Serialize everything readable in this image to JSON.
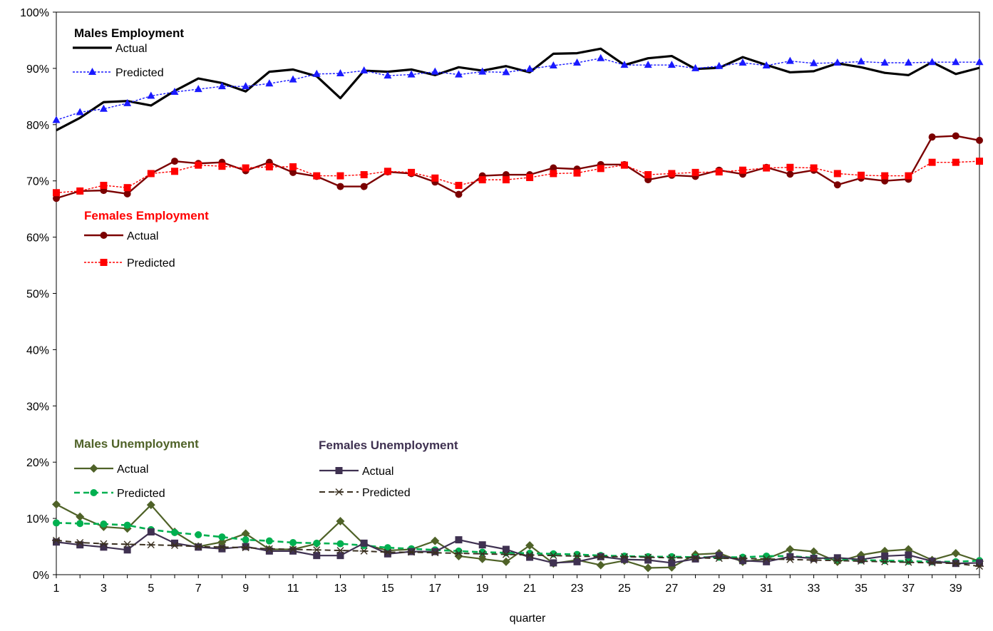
{
  "chart_data": {
    "type": "line",
    "xlabel": "quarter",
    "ylabel": "",
    "ylim": [
      0,
      100
    ],
    "y_tick_format": "percent",
    "yticks": [
      0,
      10,
      20,
      30,
      40,
      50,
      60,
      70,
      80,
      90,
      100
    ],
    "x": [
      1,
      2,
      3,
      4,
      5,
      6,
      7,
      8,
      9,
      10,
      11,
      12,
      13,
      14,
      15,
      16,
      17,
      18,
      19,
      20,
      21,
      22,
      23,
      24,
      25,
      26,
      27,
      28,
      29,
      30,
      31,
      32,
      33,
      34,
      35,
      36,
      37,
      38,
      39,
      40
    ],
    "xtick_labels": [
      1,
      3,
      5,
      7,
      9,
      11,
      13,
      15,
      17,
      19,
      21,
      23,
      25,
      27,
      29,
      31,
      33,
      35,
      37,
      39
    ],
    "grid": false,
    "groups": [
      {
        "title": "Males Employment",
        "title_color": "#000000",
        "series": [
          {
            "name": "Actual",
            "color": "#000000",
            "style": "solid",
            "width": 3.2,
            "marker": "none",
            "values": [
              79.0,
              81.2,
              84.0,
              84.2,
              83.4,
              86.0,
              88.2,
              87.4,
              85.9,
              89.4,
              89.8,
              88.6,
              84.7,
              89.6,
              89.4,
              89.8,
              88.8,
              90.2,
              89.6,
              90.4,
              89.3,
              92.6,
              92.7,
              93.5,
              90.6,
              91.8,
              92.2,
              89.9,
              90.1,
              92.0,
              90.6,
              89.3,
              89.5,
              90.9,
              90.2,
              89.2,
              88.8,
              91.1,
              89.0,
              90.1
            ]
          },
          {
            "name": "Predicted",
            "color": "#1a1aff",
            "style": "dotted",
            "width": 1.4,
            "marker": "triangle",
            "values": [
              80.8,
              82.2,
              82.8,
              83.8,
              85.1,
              85.8,
              86.3,
              86.8,
              86.8,
              87.3,
              88.0,
              89.0,
              89.1,
              89.6,
              88.7,
              88.9,
              89.4,
              88.9,
              89.4,
              89.3,
              89.9,
              90.5,
              91.0,
              91.8,
              90.6,
              90.6,
              90.6,
              90.0,
              90.4,
              91.0,
              90.5,
              91.3,
              90.9,
              91.0,
              91.2,
              91.0,
              91.0,
              91.1,
              91.1,
              91.1
            ]
          }
        ]
      },
      {
        "title": "Females Employment",
        "title_color": "#ff0000",
        "series": [
          {
            "name": "Actual",
            "color": "#7b0000",
            "style": "solid",
            "width": 2.4,
            "marker": "circle",
            "values": [
              66.9,
              68.2,
              68.3,
              67.7,
              71.3,
              73.5,
              73.1,
              73.3,
              71.8,
              73.3,
              71.5,
              70.8,
              69.0,
              69.0,
              71.6,
              71.3,
              69.8,
              67.6,
              70.9,
              71.1,
              71.1,
              72.3,
              72.1,
              72.9,
              72.9,
              70.2,
              71.0,
              70.8,
              71.9,
              71.2,
              72.4,
              71.2,
              71.9,
              69.3,
              70.5,
              70.0,
              70.3,
              77.8,
              78.0,
              77.2
            ]
          },
          {
            "name": "Predicted",
            "color": "#ff0000",
            "style": "dotted",
            "width": 1.4,
            "marker": "square",
            "values": [
              67.9,
              68.2,
              69.2,
              68.8,
              71.3,
              71.7,
              72.8,
              72.6,
              72.3,
              72.5,
              72.5,
              70.9,
              70.9,
              71.1,
              71.7,
              71.5,
              70.5,
              69.2,
              70.2,
              70.2,
              70.6,
              71.3,
              71.4,
              72.2,
              72.8,
              71.1,
              71.3,
              71.5,
              71.6,
              71.9,
              72.3,
              72.4,
              72.3,
              71.3,
              71.0,
              70.9,
              70.9,
              73.3,
              73.3,
              73.5
            ]
          }
        ]
      },
      {
        "title": "Males Unemployment",
        "title_color": "#4f6228",
        "series": [
          {
            "name": "Actual",
            "color": "#4f6228",
            "style": "solid",
            "width": 2.2,
            "marker": "diamond",
            "values": [
              12.5,
              10.3,
              8.5,
              8.2,
              12.4,
              7.6,
              5.0,
              5.8,
              7.3,
              4.5,
              4.5,
              5.5,
              9.5,
              5.4,
              4.3,
              4.5,
              6.0,
              3.3,
              2.8,
              2.3,
              5.2,
              2.0,
              2.6,
              1.7,
              2.5,
              1.2,
              1.3,
              3.6,
              3.8,
              2.3,
              2.8,
              4.5,
              4.1,
              2.3,
              3.5,
              4.2,
              4.5,
              2.6,
              3.8,
              2.4
            ]
          },
          {
            "name": "Predicted",
            "color": "#00b050",
            "style": "dashed",
            "width": 2.6,
            "marker": "circle",
            "values": [
              9.2,
              9.1,
              9.0,
              8.8,
              8.0,
              7.5,
              7.1,
              6.7,
              6.2,
              6.0,
              5.7,
              5.6,
              5.5,
              5.2,
              4.8,
              4.6,
              4.4,
              4.2,
              4.0,
              3.9,
              3.8,
              3.7,
              3.6,
              3.4,
              3.3,
              3.2,
              3.2,
              3.1,
              3.1,
              3.1,
              3.3,
              3.3,
              3.0,
              2.7,
              2.6,
              2.5,
              2.4,
              2.3,
              2.3,
              2.5
            ]
          }
        ]
      },
      {
        "title": "Females Unemployment",
        "title_color": "#3f3151",
        "series": [
          {
            "name": "Actual",
            "color": "#3f3151",
            "style": "solid",
            "width": 2.2,
            "marker": "square",
            "values": [
              5.8,
              5.3,
              4.9,
              4.4,
              7.6,
              5.6,
              4.9,
              4.6,
              5.0,
              4.2,
              4.2,
              3.4,
              3.4,
              5.6,
              3.7,
              4.1,
              4.1,
              6.2,
              5.3,
              4.5,
              3.1,
              2.1,
              2.3,
              3.2,
              2.7,
              2.6,
              2.1,
              2.8,
              3.4,
              2.5,
              2.3,
              3.2,
              2.9,
              3.0,
              2.7,
              3.3,
              3.5,
              2.4,
              2.0,
              2.1
            ]
          },
          {
            "name": "Predicted",
            "color": "#3a3020",
            "style": "dashed",
            "width": 2.0,
            "marker": "star",
            "values": [
              6.1,
              5.7,
              5.5,
              5.4,
              5.3,
              5.2,
              5.0,
              4.9,
              4.8,
              4.6,
              4.5,
              4.4,
              4.3,
              4.2,
              4.0,
              4.0,
              3.9,
              3.8,
              3.7,
              3.6,
              3.5,
              3.4,
              3.3,
              3.2,
              3.2,
              3.1,
              3.0,
              3.0,
              2.9,
              2.9,
              2.8,
              2.7,
              2.6,
              2.5,
              2.4,
              2.3,
              2.2,
              2.1,
              2.0,
              1.5
            ]
          }
        ]
      }
    ]
  }
}
